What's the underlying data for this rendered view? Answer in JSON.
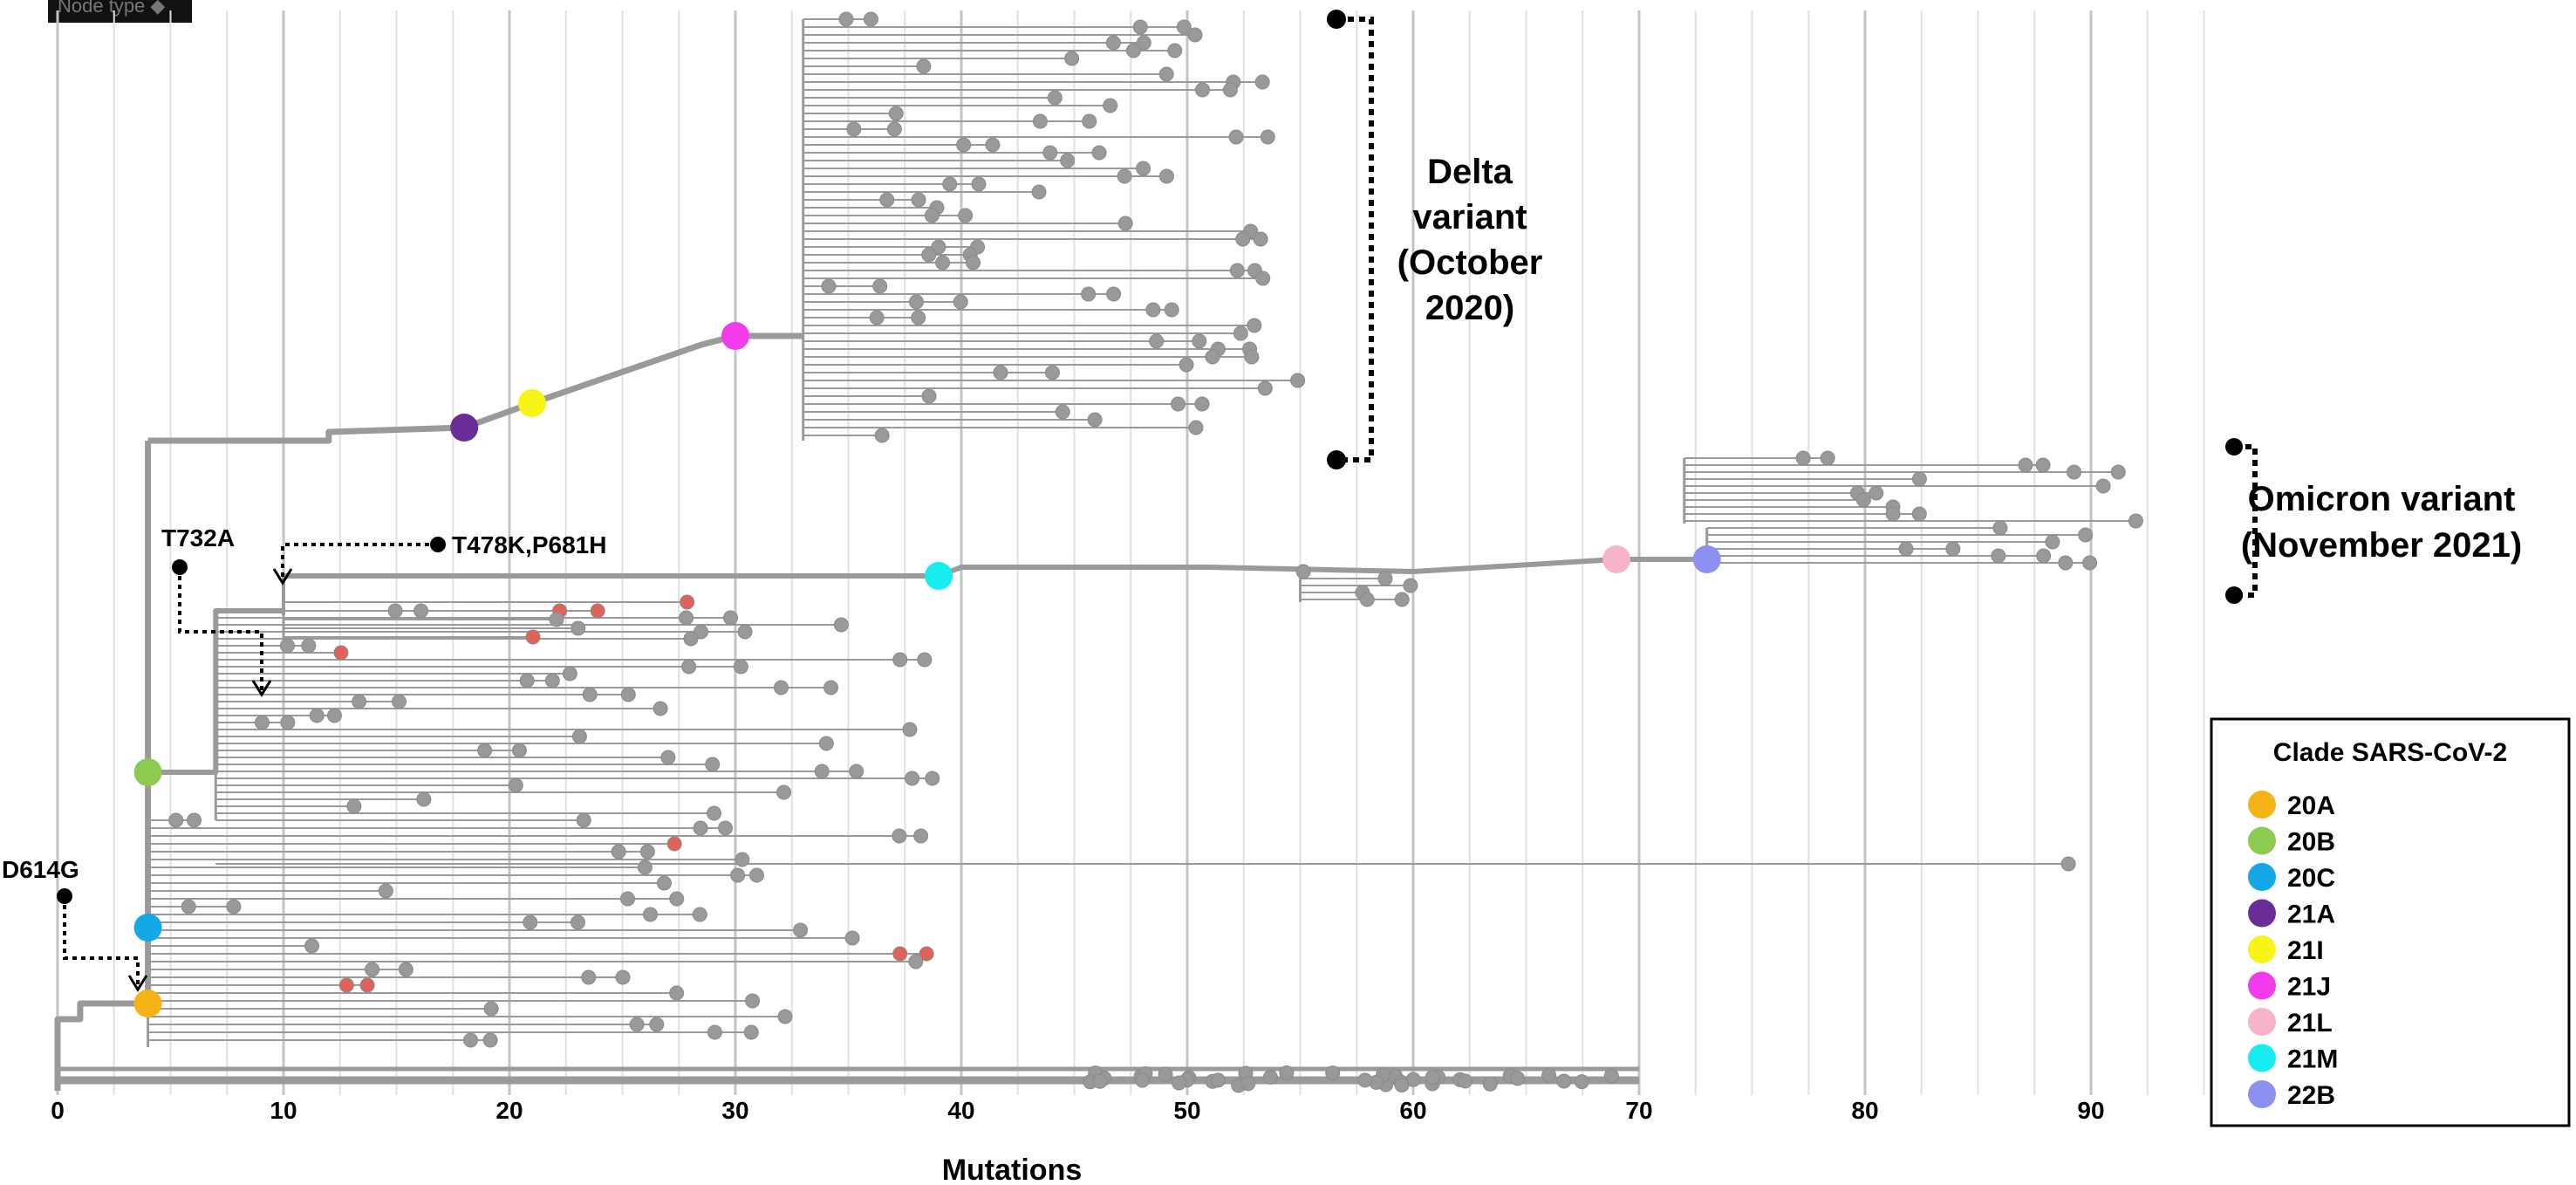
{
  "toolbar": {
    "node_type_label": "Node type ◆"
  },
  "axis": {
    "title": "Mutations",
    "ticks": [
      0,
      10,
      20,
      30,
      40,
      50,
      60,
      70,
      80,
      90
    ],
    "range": [
      0,
      95
    ]
  },
  "annotations": {
    "d614g": "D614G",
    "t732a": "T732A",
    "t478k": "T478K,P681H"
  },
  "variants": {
    "delta": [
      "Delta",
      "variant",
      "(October",
      "2020)"
    ],
    "omicron": [
      "Omicron variant",
      "(November 2021)"
    ]
  },
  "legend": {
    "title": "Clade SARS-CoV-2",
    "items": [
      {
        "label": "20A",
        "color": "#F5B316"
      },
      {
        "label": "20B",
        "color": "#8CCB4F"
      },
      {
        "label": "20C",
        "color": "#14A8E6"
      },
      {
        "label": "21A",
        "color": "#6A2C96"
      },
      {
        "label": "21I",
        "color": "#F7F416"
      },
      {
        "label": "21J",
        "color": "#F23CEC"
      },
      {
        "label": "21L",
        "color": "#F6B3C9"
      },
      {
        "label": "21M",
        "color": "#17EDF0"
      },
      {
        "label": "22B",
        "color": "#8C90F0"
      }
    ]
  },
  "clade_nodes": [
    {
      "label": "20A",
      "mutations": 4
    },
    {
      "label": "20B",
      "mutations": 4
    },
    {
      "label": "20C",
      "mutations": 4
    },
    {
      "label": "21A",
      "mutations": 18
    },
    {
      "label": "21I",
      "mutations": 21
    },
    {
      "label": "21J",
      "mutations": 30
    },
    {
      "label": "21L",
      "mutations": 69
    },
    {
      "label": "21M",
      "mutations": 39
    },
    {
      "label": "22B",
      "mutations": 73
    }
  ],
  "colors": {
    "branch": "#9a9a9a",
    "tip": "#999999",
    "highlight": "#E0635A",
    "grid": "#cfcfcf"
  }
}
